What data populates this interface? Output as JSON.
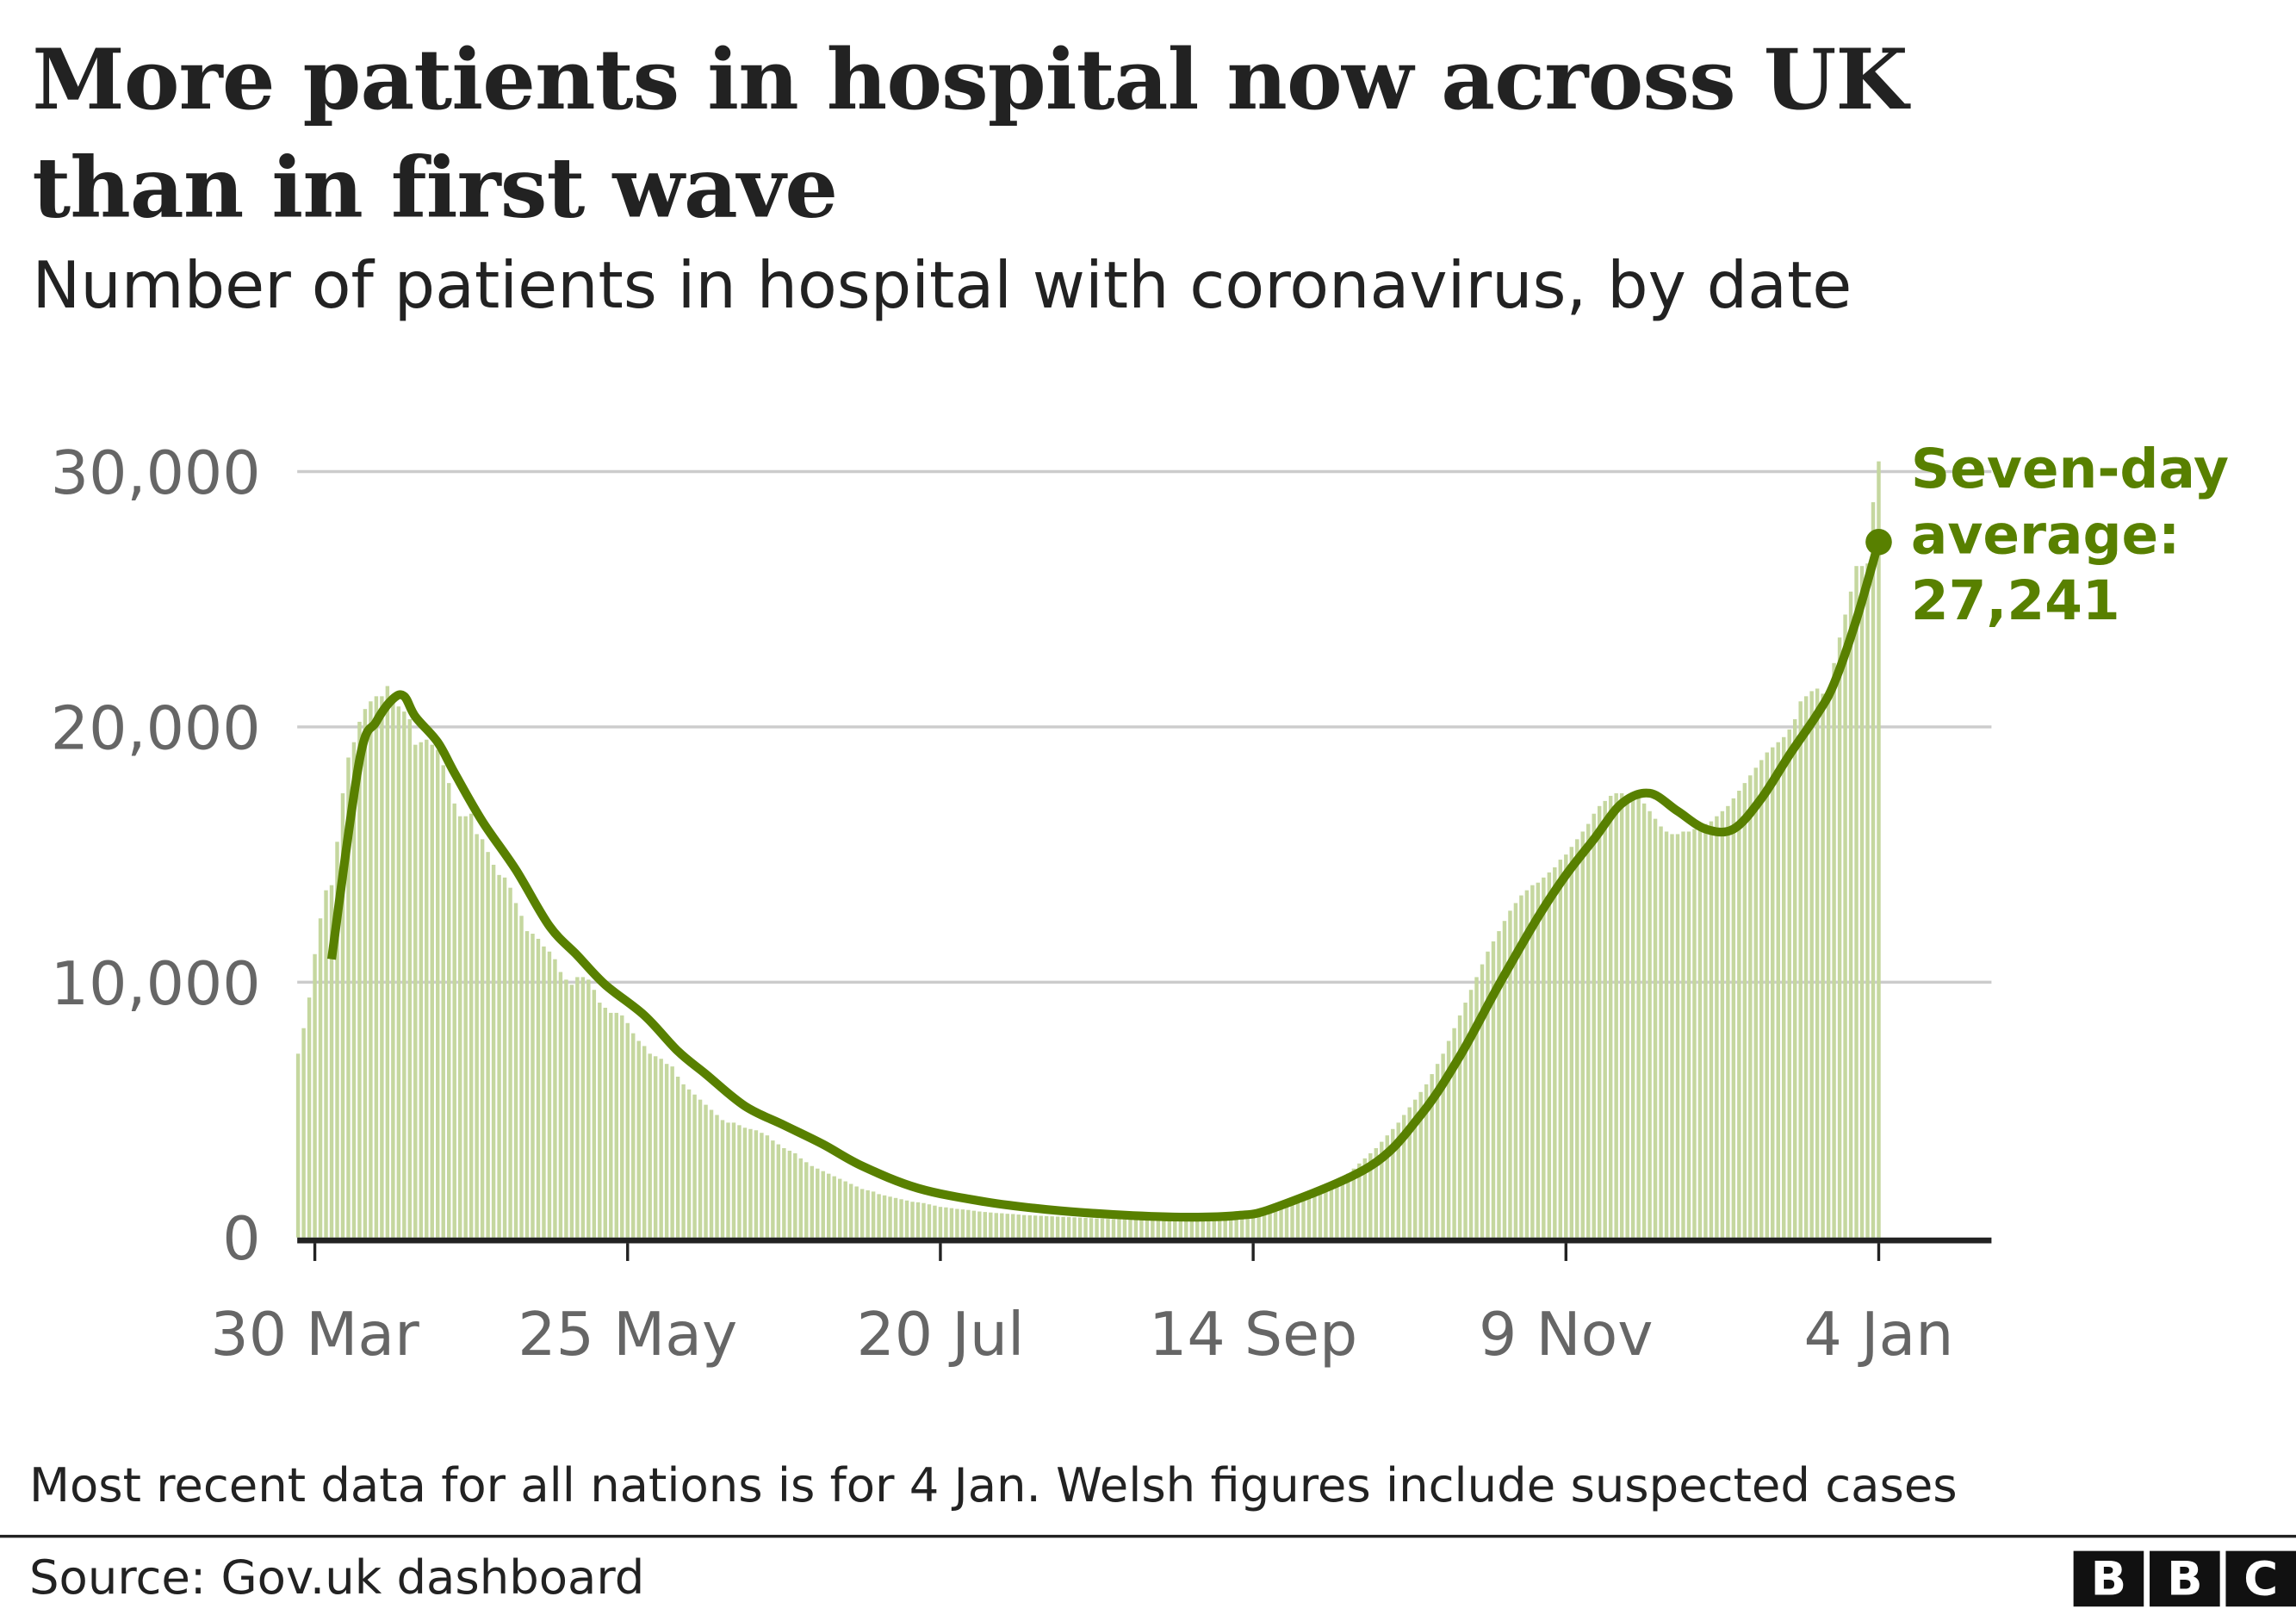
{
  "title": "More patients in hospital now across UK than in first wave",
  "title_lines": [
    "More patients in hospital now across UK",
    "than in first wave"
  ],
  "subtitle": "Number of patients in hospital with coronavirus, by date",
  "note": "Most recent data for all nations is for 4 Jan. Welsh figures include suspected cases",
  "source": "Source: Gov.uk dashboard",
  "logo": [
    "B",
    "B",
    "C"
  ],
  "colors": {
    "bars": "#c5d79f",
    "line": "#588000",
    "grid": "#cccccc",
    "axis": "#222222",
    "annotation": "#588000"
  },
  "chart_data": {
    "type": "bar",
    "xlabel": "",
    "ylabel": "",
    "ylim": [
      0,
      30000
    ],
    "grid": true,
    "yticks": [
      0,
      10000,
      20000,
      30000
    ],
    "ytick_labels": [
      "0",
      "10,000",
      "20,000",
      "30,000"
    ],
    "xticks": [
      "2020-03-30",
      "2020-05-25",
      "2020-07-20",
      "2020-09-14",
      "2020-11-09",
      "2021-01-04"
    ],
    "xtick_labels": [
      "30 Mar",
      "25 May",
      "20 Jul",
      "14 Sep",
      "9 Nov",
      "4 Jan"
    ],
    "bars": {
      "start": "2020-03-27",
      "values": [
        7200,
        8200,
        9400,
        11100,
        12500,
        13600,
        13800,
        15500,
        17400,
        18800,
        19400,
        20200,
        20700,
        21000,
        21200,
        21200,
        21600,
        21200,
        20800,
        20600,
        20300,
        19300,
        19400,
        19500,
        19300,
        19100,
        18500,
        17800,
        17000,
        16500,
        16500,
        16600,
        15800,
        15600,
        15100,
        14600,
        14200,
        14100,
        13700,
        13100,
        12600,
        12000,
        11900,
        11700,
        11400,
        11200,
        10900,
        10400,
        10100,
        9900,
        10200,
        10200,
        10100,
        9700,
        9200,
        9000,
        8800,
        8800,
        8700,
        8400,
        8000,
        7700,
        7500,
        7200,
        7100,
        7000,
        6800,
        6700,
        6300,
        6000,
        5800,
        5600,
        5400,
        5200,
        5000,
        4800,
        4600,
        4500,
        4500,
        4400,
        4300,
        4250,
        4200,
        4100,
        4000,
        3800,
        3650,
        3500,
        3400,
        3300,
        3100,
        2950,
        2800,
        2700,
        2600,
        2500,
        2400,
        2300,
        2200,
        2100,
        2000,
        1900,
        1850,
        1800,
        1700,
        1650,
        1600,
        1550,
        1500,
        1450,
        1400,
        1380,
        1350,
        1300,
        1250,
        1200,
        1180,
        1150,
        1120,
        1100,
        1080,
        1050,
        1020,
        1000,
        980,
        960,
        950,
        930,
        920,
        900,
        880,
        870,
        860,
        850,
        840,
        830,
        820,
        810,
        800,
        790,
        780,
        770,
        760,
        750,
        740,
        730,
        720,
        720,
        710,
        700,
        700,
        690,
        690,
        690,
        680,
        680,
        690,
        700,
        710,
        720,
        730,
        750,
        760,
        780,
        800,
        820,
        850,
        880,
        910,
        950,
        990,
        1030,
        1050,
        1100,
        1150,
        1200,
        1260,
        1320,
        1400,
        1480,
        1560,
        1650,
        1750,
        1850,
        1950,
        2050,
        2150,
        2250,
        2500,
        2700,
        2900,
        3100,
        3300,
        3500,
        3750,
        4000,
        4250,
        4500,
        4800,
        5100,
        5400,
        5700,
        6000,
        6400,
        6800,
        7200,
        7700,
        8200,
        8700,
        9200,
        9700,
        10200,
        10700,
        11200,
        11600,
        12000,
        12400,
        12800,
        13100,
        13400,
        13600,
        13800,
        13900,
        14100,
        14300,
        14500,
        14800,
        15000,
        15300,
        15600,
        15900,
        16200,
        16600,
        16900,
        17100,
        17300,
        17400,
        17400,
        17300,
        17300,
        17200,
        17000,
        16700,
        16400,
        16100,
        15900,
        15800,
        15800,
        15900,
        15900,
        16000,
        16100,
        16200,
        16300,
        16500,
        16700,
        16900,
        17200,
        17500,
        17800,
        18100,
        18400,
        18700,
        19000,
        19200,
        19400,
        19600,
        19900,
        20300,
        21000,
        21200,
        21400,
        21500,
        21300,
        21000,
        22500,
        23500,
        24400,
        25300,
        26300,
        26300,
        26400,
        28800,
        30400
      ]
    },
    "series": [
      {
        "name": "Seven-day average",
        "type": "line",
        "points": [
          [
            "2020-04-02",
            10900
          ],
          [
            "2020-04-07",
            18700
          ],
          [
            "2020-04-10",
            20200
          ],
          [
            "2020-04-13",
            21100
          ],
          [
            "2020-04-15",
            21200
          ],
          [
            "2020-04-17",
            20400
          ],
          [
            "2020-04-21",
            19400
          ],
          [
            "2020-04-24",
            18200
          ],
          [
            "2020-04-29",
            16300
          ],
          [
            "2020-05-05",
            14400
          ],
          [
            "2020-05-11",
            12200
          ],
          [
            "2020-05-16",
            11050
          ],
          [
            "2020-05-21",
            9900
          ],
          [
            "2020-05-28",
            8700
          ],
          [
            "2020-06-03",
            7300
          ],
          [
            "2020-06-08",
            6400
          ],
          [
            "2020-06-15",
            5150
          ],
          [
            "2020-06-22",
            4400
          ],
          [
            "2020-06-29",
            3650
          ],
          [
            "2020-07-06",
            2800
          ],
          [
            "2020-07-16",
            1930
          ],
          [
            "2020-07-28",
            1400
          ],
          [
            "2020-08-08",
            1100
          ],
          [
            "2020-08-20",
            900
          ],
          [
            "2020-09-01",
            800
          ],
          [
            "2020-09-11",
            860
          ],
          [
            "2020-09-18",
            1180
          ],
          [
            "2020-10-05",
            2800
          ],
          [
            "2020-10-14",
            4800
          ],
          [
            "2020-10-21",
            7100
          ],
          [
            "2020-10-28",
            9900
          ],
          [
            "2020-11-04",
            12550
          ],
          [
            "2020-11-09",
            14200
          ],
          [
            "2020-11-14",
            15600
          ],
          [
            "2020-11-19",
            17000
          ],
          [
            "2020-11-24",
            17400
          ],
          [
            "2020-11-29",
            16700
          ],
          [
            "2020-12-04",
            16000
          ],
          [
            "2020-12-09",
            16000
          ],
          [
            "2020-12-14",
            17200
          ],
          [
            "2020-12-19",
            18900
          ],
          [
            "2020-12-24",
            20500
          ],
          [
            "2020-12-27",
            21700
          ],
          [
            "2020-12-31",
            24200
          ],
          [
            "2021-01-04",
            27241
          ]
        ]
      }
    ],
    "annotation": {
      "lines": [
        "Seven-day",
        "average:",
        "27,241"
      ],
      "value": 27241,
      "date": "2021-01-04"
    }
  }
}
